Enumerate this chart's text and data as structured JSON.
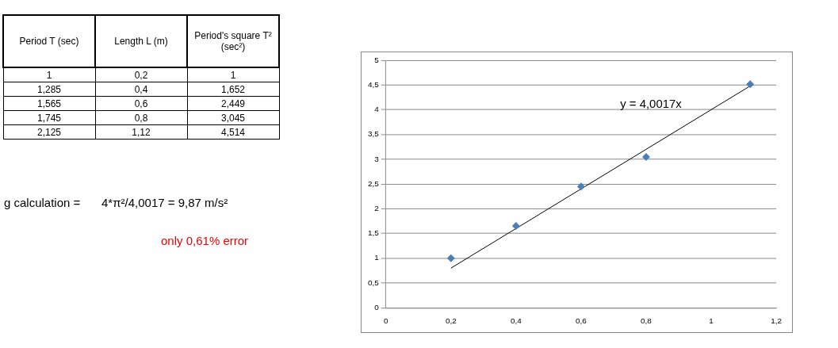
{
  "chart_data": [
    {
      "type": "other",
      "annotations": [
        "Period T (sec)",
        "Length L (m)",
        "Period's square  T² (sec²)",
        "1",
        "0,2",
        "1",
        "1,285",
        "0,4",
        "1,652",
        "1,565",
        "0,6",
        "2,449",
        "1,745",
        "0,8",
        "3,045",
        "2,125",
        "1,12",
        "4,514",
        "g calculation =",
        "4*π²/4,0017 = 9,87 m/s²",
        "only  0,61% error"
      ]
    },
    {
      "type": "scatter",
      "marker": "diamond",
      "grid": "y",
      "legend": false,
      "xlim": [
        0,
        1.2
      ],
      "xticks": [
        0,
        {
          "value": 0.2,
          "label": "0,2"
        },
        {
          "value": 0.4,
          "label": "0,4"
        },
        {
          "value": 0.6,
          "label": "0,6"
        },
        {
          "value": 0.8,
          "label": "0,8"
        },
        1,
        {
          "value": 1.2,
          "label": "1,2"
        }
      ],
      "ylim": [
        0,
        5
      ],
      "yticks": [
        0,
        {
          "value": 0.5,
          "label": "0,5"
        },
        1,
        {
          "value": 1.5,
          "label": "1,5"
        },
        2,
        {
          "value": 2.5,
          "label": "2,5"
        },
        3,
        {
          "value": 3.5,
          "label": "3,5"
        },
        4,
        {
          "value": 4.5,
          "label": "4,5"
        },
        5
      ],
      "series": [
        {
          "type": "scatter",
          "color": "#4a7ebb",
          "x": [
            0.2,
            0.4,
            0.6,
            0.8,
            1.12
          ],
          "values": [
            1,
            1.652,
            2.449,
            3.045,
            4.514
          ]
        },
        {
          "type": "line",
          "color": "#000000",
          "marker": "none",
          "x": [
            0.2,
            1.12
          ],
          "values": [
            0.8,
            4.48
          ]
        }
      ],
      "annotations": [
        "y = 4,0017x"
      ]
    }
  ]
}
